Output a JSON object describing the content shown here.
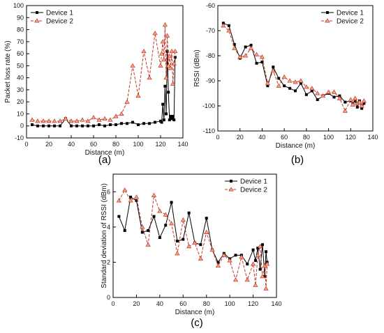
{
  "chart_data": [
    {
      "type": "line",
      "panel_label": "(a)",
      "xlabel": "Distance (m)",
      "ylabel": "Packet loss rate (%)",
      "xlim": [
        0,
        140
      ],
      "ylim": [
        -10,
        100
      ],
      "xticks": [
        0,
        20,
        40,
        60,
        80,
        100,
        120,
        140
      ],
      "yticks": [
        -10,
        0,
        10,
        20,
        30,
        40,
        50,
        60,
        70,
        80,
        90,
        100
      ],
      "grid": false,
      "legend": "top-left",
      "series": [
        {
          "name": "Device 1",
          "color": "#000000",
          "style": "solid",
          "marker": "square",
          "x": [
            5,
            10,
            15,
            20,
            25,
            30,
            35,
            40,
            45,
            50,
            55,
            60,
            65,
            70,
            75,
            80,
            85,
            90,
            95,
            100,
            105,
            110,
            115,
            120,
            121,
            122,
            123,
            124,
            125,
            126,
            127,
            128,
            129,
            130,
            131,
            132,
            133
          ],
          "y": [
            1,
            0,
            0,
            0,
            0,
            0,
            6,
            0,
            0,
            0,
            0,
            0,
            1,
            0,
            1,
            1,
            2,
            2,
            3,
            1,
            2,
            2,
            3,
            4,
            3,
            18,
            5,
            33,
            10,
            62,
            28,
            5,
            8,
            6,
            8,
            5,
            57
          ]
        },
        {
          "name": "Device 2",
          "color": "#c0392b",
          "style": "dashed",
          "marker": "triangle",
          "x": [
            5,
            10,
            15,
            20,
            25,
            30,
            35,
            40,
            45,
            50,
            55,
            60,
            65,
            70,
            75,
            80,
            85,
            90,
            95,
            100,
            105,
            110,
            115,
            120,
            121,
            122,
            123,
            124,
            125,
            126,
            127,
            128,
            129,
            130,
            131,
            132,
            133
          ],
          "y": [
            5,
            4,
            4,
            4,
            4,
            4,
            6,
            4,
            4,
            5,
            4,
            7,
            5,
            6,
            5,
            8,
            10,
            20,
            50,
            25,
            62,
            40,
            77,
            50,
            60,
            70,
            55,
            84,
            40,
            75,
            50,
            58,
            48,
            62,
            35,
            52,
            62
          ]
        }
      ]
    },
    {
      "type": "line",
      "panel_label": "(b)",
      "xlabel": "Distance (m)",
      "ylabel": "RSSI (dBm)",
      "xlim": [
        0,
        140
      ],
      "ylim": [
        -110,
        -60
      ],
      "xticks": [
        0,
        20,
        40,
        60,
        80,
        100,
        120,
        140
      ],
      "yticks": [
        -110,
        -100,
        -90,
        -80,
        -70,
        -60
      ],
      "grid": false,
      "legend": "top-right",
      "series": [
        {
          "name": "Device 1",
          "color": "#000000",
          "style": "solid",
          "marker": "square",
          "x": [
            5,
            10,
            15,
            20,
            25,
            30,
            35,
            40,
            45,
            50,
            55,
            60,
            65,
            70,
            75,
            80,
            85,
            90,
            95,
            100,
            105,
            110,
            115,
            120,
            122,
            124,
            126,
            128,
            130,
            132
          ],
          "y": [
            -67,
            -68,
            -75.5,
            -81,
            -76.5,
            -75.8,
            -83,
            -82.5,
            -92,
            -84.5,
            -89,
            -92,
            -93,
            -94,
            -91,
            -95.5,
            -94,
            -97.5,
            -96,
            -95,
            -96.5,
            -96,
            -98.5,
            -98,
            -99,
            -98,
            -100.5,
            -98,
            -101,
            -99
          ]
        },
        {
          "name": "Device 2",
          "color": "#c0392b",
          "style": "dashed",
          "marker": "triangle",
          "x": [
            5,
            10,
            15,
            20,
            25,
            30,
            35,
            40,
            45,
            50,
            55,
            60,
            65,
            70,
            75,
            80,
            85,
            90,
            95,
            100,
            105,
            110,
            115,
            120,
            122,
            124,
            126,
            128,
            130,
            132
          ],
          "y": [
            -68,
            -70,
            -77,
            -80.5,
            -80,
            -77,
            -79.5,
            -80.5,
            -91,
            -86,
            -92,
            -88.5,
            -90,
            -90.5,
            -90,
            -92.5,
            -93,
            -95,
            -96,
            -94.5,
            -94.5,
            -97,
            -102,
            -97.5,
            -99.5,
            -97,
            -99,
            -98.5,
            -100,
            -98
          ]
        }
      ]
    },
    {
      "type": "line",
      "panel_label": "(c)",
      "xlabel": "Distance (m)",
      "ylabel": "Standard deviation of RSSI (dBm)",
      "xlim": [
        0,
        140
      ],
      "ylim": [
        0,
        7
      ],
      "xticks": [
        0,
        20,
        40,
        60,
        80,
        100,
        120,
        140
      ],
      "yticks": [
        0,
        2,
        4,
        6
      ],
      "grid": false,
      "legend": "top-right",
      "series": [
        {
          "name": "Device 1",
          "color": "#000000",
          "style": "solid",
          "marker": "square",
          "x": [
            5,
            10,
            15,
            20,
            25,
            30,
            35,
            40,
            45,
            50,
            55,
            60,
            65,
            70,
            75,
            80,
            85,
            90,
            95,
            100,
            105,
            110,
            115,
            120,
            122,
            124,
            126,
            128,
            130,
            131,
            132
          ],
          "y": [
            4.6,
            3.8,
            5.7,
            5.5,
            3.7,
            3.8,
            4.6,
            3.4,
            4.1,
            5.4,
            3.2,
            3.3,
            4.8,
            3.1,
            3.0,
            4.5,
            2.7,
            2.0,
            2.5,
            2.2,
            2.4,
            2.4,
            1.9,
            2.7,
            2.1,
            2.8,
            1.6,
            3.0,
            1.2,
            2.6,
            2.0
          ]
        },
        {
          "name": "Device 2",
          "color": "#c0392b",
          "style": "dashed",
          "marker": "triangle",
          "x": [
            5,
            10,
            15,
            20,
            25,
            30,
            35,
            40,
            45,
            50,
            55,
            60,
            65,
            70,
            75,
            80,
            85,
            90,
            95,
            100,
            105,
            110,
            115,
            120,
            122,
            124,
            126,
            128,
            130,
            131,
            132
          ],
          "y": [
            5.5,
            6.1,
            5.5,
            5.7,
            4.0,
            3.0,
            5.8,
            4.9,
            4.7,
            4.2,
            2.5,
            4.4,
            2.9,
            3.1,
            2.2,
            3.7,
            2.7,
            1.8,
            2.4,
            2.1,
            1.0,
            2.3,
            1.0,
            1.9,
            0.7,
            2.4,
            2.9,
            1.2,
            1.8,
            0.5,
            1.9
          ]
        }
      ]
    }
  ]
}
